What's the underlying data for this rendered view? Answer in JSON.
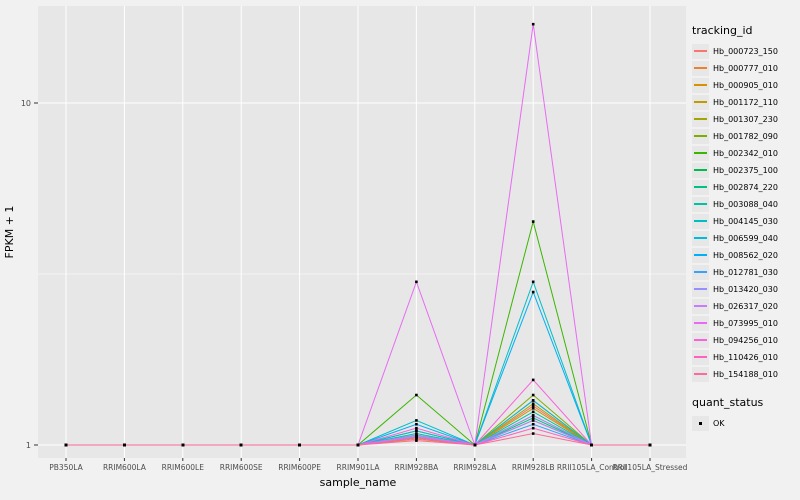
{
  "chart_data": {
    "type": "line",
    "title": "",
    "xlabel": "sample_name",
    "ylabel": "FPKM + 1",
    "y_scale": "log10",
    "y_ticks": [
      1,
      10
    ],
    "ylim": [
      1,
      20
    ],
    "grid": true,
    "panel_bg": "#E7E7E7",
    "grid_color": "#FFFFFF",
    "point_shape": "square",
    "point_color": "#000000",
    "categories": [
      "PB350LA",
      "RRIM600LA",
      "RRIM600LE",
      "RRIM600SE",
      "RRIM600PE",
      "RRIM901LA",
      "RRIM928BA",
      "RRIM928LA",
      "RRIM928LB",
      "RRII105LA_Control",
      "RRII105LA_Stressed"
    ],
    "legend": {
      "color_title": "tracking_id",
      "shape_title": "quant_status",
      "shape_entries": [
        "OK"
      ]
    },
    "series": [
      {
        "name": "Hb_000723_150",
        "color": "#F8766D",
        "values": [
          1,
          1,
          1,
          1,
          1,
          1,
          1.05,
          1,
          1.3,
          1,
          1
        ]
      },
      {
        "name": "Hb_000777_010",
        "color": "#EA8331",
        "values": [
          1,
          1,
          1,
          1,
          1,
          1,
          1.04,
          1,
          1.22,
          1,
          1
        ]
      },
      {
        "name": "Hb_000905_010",
        "color": "#D89000",
        "values": [
          1,
          1,
          1,
          1,
          1,
          1,
          1.06,
          1,
          1.35,
          1,
          1
        ]
      },
      {
        "name": "Hb_001172_110",
        "color": "#C09B00",
        "values": [
          1,
          1,
          1,
          1,
          1,
          1,
          1.05,
          1,
          1.28,
          1,
          1
        ]
      },
      {
        "name": "Hb_001307_230",
        "color": "#A3A500",
        "values": [
          1,
          1,
          1,
          1,
          1,
          1,
          1.07,
          1,
          1.32,
          1,
          1
        ]
      },
      {
        "name": "Hb_001782_090",
        "color": "#7CAE00",
        "values": [
          1,
          1,
          1,
          1,
          1,
          1,
          1.1,
          1,
          1.4,
          1,
          1
        ]
      },
      {
        "name": "Hb_002342_010",
        "color": "#39B600",
        "values": [
          1,
          1,
          1,
          1,
          1,
          1,
          1.4,
          1,
          4.5,
          1,
          1
        ]
      },
      {
        "name": "Hb_002375_100",
        "color": "#00BB4E",
        "values": [
          1,
          1,
          1,
          1,
          1,
          1,
          1.05,
          1,
          1.18,
          1,
          1
        ]
      },
      {
        "name": "Hb_002874_220",
        "color": "#00C087",
        "values": [
          1,
          1,
          1,
          1,
          1,
          1,
          1.06,
          1,
          1.2,
          1,
          1
        ]
      },
      {
        "name": "Hb_003088_040",
        "color": "#00C1A3",
        "values": [
          1,
          1,
          1,
          1,
          1,
          1,
          1.08,
          1,
          1.25,
          1,
          1
        ]
      },
      {
        "name": "Hb_004145_030",
        "color": "#00BFC4",
        "values": [
          1,
          1,
          1,
          1,
          1,
          1,
          1.18,
          1,
          3.0,
          1,
          1
        ]
      },
      {
        "name": "Hb_006599_040",
        "color": "#00BAE0",
        "values": [
          1,
          1,
          1,
          1,
          1,
          1,
          1.1,
          1,
          1.35,
          1,
          1
        ]
      },
      {
        "name": "Hb_008562_020",
        "color": "#00B0F6",
        "values": [
          1,
          1,
          1,
          1,
          1,
          1,
          1.15,
          1,
          2.8,
          1,
          1
        ]
      },
      {
        "name": "Hb_012781_030",
        "color": "#35A2FF",
        "values": [
          1,
          1,
          1,
          1,
          1,
          1,
          1.05,
          1,
          1.15,
          1,
          1
        ]
      },
      {
        "name": "Hb_013420_030",
        "color": "#9590FF",
        "values": [
          1,
          1,
          1,
          1,
          1,
          1,
          1.07,
          1,
          1.22,
          1,
          1
        ]
      },
      {
        "name": "Hb_026317_020",
        "color": "#C77CFF",
        "values": [
          1,
          1,
          1,
          1,
          1,
          1,
          1.06,
          1,
          1.18,
          1,
          1
        ]
      },
      {
        "name": "Hb_073995_010",
        "color": "#E76BF3",
        "values": [
          1,
          1,
          1,
          1,
          1,
          1,
          3.0,
          1,
          17.0,
          1,
          1
        ]
      },
      {
        "name": "Hb_094256_010",
        "color": "#FA62DB",
        "values": [
          1,
          1,
          1,
          1,
          1,
          1,
          1.12,
          1,
          1.55,
          1,
          1
        ]
      },
      {
        "name": "Hb_110426_010",
        "color": "#FF62BC",
        "values": [
          1,
          1,
          1,
          1,
          1,
          1,
          1.05,
          1,
          1.12,
          1,
          1
        ]
      },
      {
        "name": "Hb_154188_010",
        "color": "#FF6A98",
        "values": [
          1,
          1,
          1,
          1,
          1,
          1,
          1.03,
          1,
          1.08,
          1,
          1
        ]
      }
    ]
  }
}
